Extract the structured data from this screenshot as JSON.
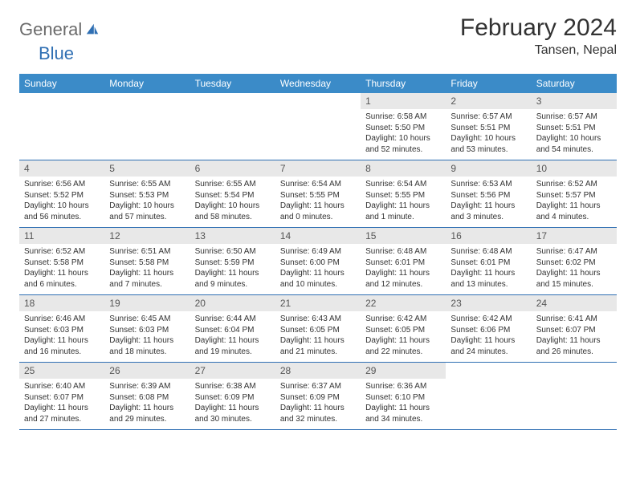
{
  "logo": {
    "general": "General",
    "blue": "Blue"
  },
  "title": "February 2024",
  "location": "Tansen, Nepal",
  "colors": {
    "header_bg": "#3b8bc8",
    "border": "#2f6fb3",
    "daynum_bg": "#e8e8e8"
  },
  "weekdays": [
    "Sunday",
    "Monday",
    "Tuesday",
    "Wednesday",
    "Thursday",
    "Friday",
    "Saturday"
  ],
  "weeks": [
    [
      null,
      null,
      null,
      null,
      {
        "num": "1",
        "sunrise": "Sunrise: 6:58 AM",
        "sunset": "Sunset: 5:50 PM",
        "daylight": "Daylight: 10 hours and 52 minutes."
      },
      {
        "num": "2",
        "sunrise": "Sunrise: 6:57 AM",
        "sunset": "Sunset: 5:51 PM",
        "daylight": "Daylight: 10 hours and 53 minutes."
      },
      {
        "num": "3",
        "sunrise": "Sunrise: 6:57 AM",
        "sunset": "Sunset: 5:51 PM",
        "daylight": "Daylight: 10 hours and 54 minutes."
      }
    ],
    [
      {
        "num": "4",
        "sunrise": "Sunrise: 6:56 AM",
        "sunset": "Sunset: 5:52 PM",
        "daylight": "Daylight: 10 hours and 56 minutes."
      },
      {
        "num": "5",
        "sunrise": "Sunrise: 6:55 AM",
        "sunset": "Sunset: 5:53 PM",
        "daylight": "Daylight: 10 hours and 57 minutes."
      },
      {
        "num": "6",
        "sunrise": "Sunrise: 6:55 AM",
        "sunset": "Sunset: 5:54 PM",
        "daylight": "Daylight: 10 hours and 58 minutes."
      },
      {
        "num": "7",
        "sunrise": "Sunrise: 6:54 AM",
        "sunset": "Sunset: 5:55 PM",
        "daylight": "Daylight: 11 hours and 0 minutes."
      },
      {
        "num": "8",
        "sunrise": "Sunrise: 6:54 AM",
        "sunset": "Sunset: 5:55 PM",
        "daylight": "Daylight: 11 hours and 1 minute."
      },
      {
        "num": "9",
        "sunrise": "Sunrise: 6:53 AM",
        "sunset": "Sunset: 5:56 PM",
        "daylight": "Daylight: 11 hours and 3 minutes."
      },
      {
        "num": "10",
        "sunrise": "Sunrise: 6:52 AM",
        "sunset": "Sunset: 5:57 PM",
        "daylight": "Daylight: 11 hours and 4 minutes."
      }
    ],
    [
      {
        "num": "11",
        "sunrise": "Sunrise: 6:52 AM",
        "sunset": "Sunset: 5:58 PM",
        "daylight": "Daylight: 11 hours and 6 minutes."
      },
      {
        "num": "12",
        "sunrise": "Sunrise: 6:51 AM",
        "sunset": "Sunset: 5:58 PM",
        "daylight": "Daylight: 11 hours and 7 minutes."
      },
      {
        "num": "13",
        "sunrise": "Sunrise: 6:50 AM",
        "sunset": "Sunset: 5:59 PM",
        "daylight": "Daylight: 11 hours and 9 minutes."
      },
      {
        "num": "14",
        "sunrise": "Sunrise: 6:49 AM",
        "sunset": "Sunset: 6:00 PM",
        "daylight": "Daylight: 11 hours and 10 minutes."
      },
      {
        "num": "15",
        "sunrise": "Sunrise: 6:48 AM",
        "sunset": "Sunset: 6:01 PM",
        "daylight": "Daylight: 11 hours and 12 minutes."
      },
      {
        "num": "16",
        "sunrise": "Sunrise: 6:48 AM",
        "sunset": "Sunset: 6:01 PM",
        "daylight": "Daylight: 11 hours and 13 minutes."
      },
      {
        "num": "17",
        "sunrise": "Sunrise: 6:47 AM",
        "sunset": "Sunset: 6:02 PM",
        "daylight": "Daylight: 11 hours and 15 minutes."
      }
    ],
    [
      {
        "num": "18",
        "sunrise": "Sunrise: 6:46 AM",
        "sunset": "Sunset: 6:03 PM",
        "daylight": "Daylight: 11 hours and 16 minutes."
      },
      {
        "num": "19",
        "sunrise": "Sunrise: 6:45 AM",
        "sunset": "Sunset: 6:03 PM",
        "daylight": "Daylight: 11 hours and 18 minutes."
      },
      {
        "num": "20",
        "sunrise": "Sunrise: 6:44 AM",
        "sunset": "Sunset: 6:04 PM",
        "daylight": "Daylight: 11 hours and 19 minutes."
      },
      {
        "num": "21",
        "sunrise": "Sunrise: 6:43 AM",
        "sunset": "Sunset: 6:05 PM",
        "daylight": "Daylight: 11 hours and 21 minutes."
      },
      {
        "num": "22",
        "sunrise": "Sunrise: 6:42 AM",
        "sunset": "Sunset: 6:05 PM",
        "daylight": "Daylight: 11 hours and 22 minutes."
      },
      {
        "num": "23",
        "sunrise": "Sunrise: 6:42 AM",
        "sunset": "Sunset: 6:06 PM",
        "daylight": "Daylight: 11 hours and 24 minutes."
      },
      {
        "num": "24",
        "sunrise": "Sunrise: 6:41 AM",
        "sunset": "Sunset: 6:07 PM",
        "daylight": "Daylight: 11 hours and 26 minutes."
      }
    ],
    [
      {
        "num": "25",
        "sunrise": "Sunrise: 6:40 AM",
        "sunset": "Sunset: 6:07 PM",
        "daylight": "Daylight: 11 hours and 27 minutes."
      },
      {
        "num": "26",
        "sunrise": "Sunrise: 6:39 AM",
        "sunset": "Sunset: 6:08 PM",
        "daylight": "Daylight: 11 hours and 29 minutes."
      },
      {
        "num": "27",
        "sunrise": "Sunrise: 6:38 AM",
        "sunset": "Sunset: 6:09 PM",
        "daylight": "Daylight: 11 hours and 30 minutes."
      },
      {
        "num": "28",
        "sunrise": "Sunrise: 6:37 AM",
        "sunset": "Sunset: 6:09 PM",
        "daylight": "Daylight: 11 hours and 32 minutes."
      },
      {
        "num": "29",
        "sunrise": "Sunrise: 6:36 AM",
        "sunset": "Sunset: 6:10 PM",
        "daylight": "Daylight: 11 hours and 34 minutes."
      },
      null,
      null
    ]
  ]
}
